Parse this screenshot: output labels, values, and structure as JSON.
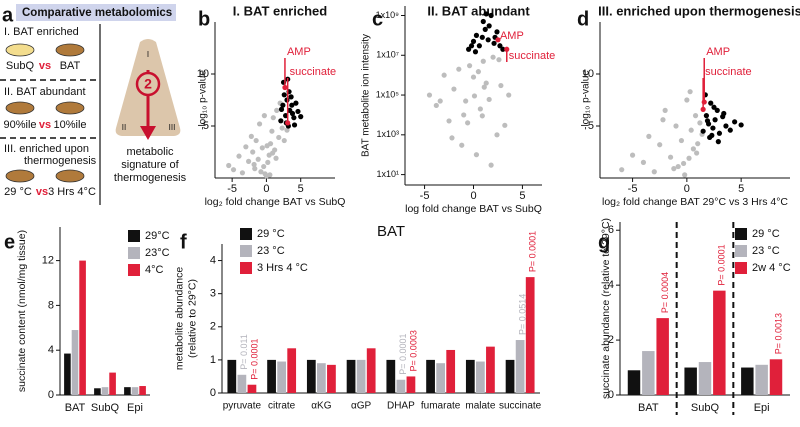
{
  "panel_a": {
    "label": "a",
    "title": "Comparative metabolomics",
    "rows": [
      {
        "heading": [
          "I. BAT enriched"
        ],
        "left": "SubQ",
        "vs": "vs",
        "right": "BAT"
      },
      {
        "heading": [
          "II. BAT abundant"
        ],
        "left": "90%ile",
        "vs": "vs",
        "right": "10%ile"
      },
      {
        "heading": [
          "III. enriched upon",
          "thermogenesis"
        ],
        "left": "29 °C",
        "vs": "vs",
        "right": "3 Hrs 4°C"
      }
    ],
    "diagram": {
      "step": "2",
      "corner_labels": [
        "I",
        "II",
        "III"
      ],
      "caption": [
        "metabolic",
        "signature of",
        "thermogenesis"
      ]
    }
  },
  "chart_data": [
    {
      "type": "scatter",
      "panel_label": "b",
      "title": "I. BAT enriched",
      "xlabel": "log₂ fold change  BAT vs SubQ",
      "ylabel": "-log₁₀ p-value",
      "xlim": [
        -7.5,
        10
      ],
      "xticks": [
        -5,
        0,
        5
      ],
      "ylim": [
        0,
        15
      ],
      "yticks": [
        5,
        10
      ],
      "series": [
        {
          "color": "#bdbdbd",
          "x": [
            -5.5,
            -4.8,
            -4,
            -3.5,
            -3,
            -2.6,
            -2.2,
            -2,
            -1.7,
            -1.5,
            -1.2,
            -1,
            -0.8,
            -0.6,
            -0.4,
            -0.2,
            0,
            0.2,
            0.4,
            0.6,
            0.8,
            1,
            1.2,
            1.5,
            1.8,
            2,
            2.3,
            0.5,
            -0.3,
            1.4,
            0.9,
            -1.8,
            2.6,
            3,
            0.1
          ],
          "values": [
            1.2,
            0.8,
            2.1,
            0.5,
            3,
            1.6,
            4,
            2.5,
            0.9,
            3.6,
            1.8,
            5.2,
            0.6,
            2.9,
            1.1,
            0.4,
            0.2,
            1.5,
            2.2,
            3.3,
            4.5,
            5.8,
            2.7,
            6.5,
            3.9,
            7.2,
            4.8,
            0.3,
            6,
            1.9,
            2.4,
            1.3,
            3.6,
            4.6,
            3.1
          ]
        },
        {
          "color": "#000000",
          "x": [
            2.1,
            2.4,
            2.6,
            2.8,
            3,
            3.2,
            3.4,
            3.6,
            3.8,
            4,
            4.3,
            4.6,
            5,
            2.5,
            2.9,
            3.3,
            3.7,
            2.2,
            3.1,
            4.1
          ],
          "values": [
            5.5,
            7,
            8,
            6,
            7.5,
            5,
            6.5,
            7.8,
            6.2,
            5.8,
            7.2,
            6.4,
            5.9,
            9.2,
            5.3,
            8.3,
            7,
            6.6,
            9.5,
            5.1
          ]
        },
        {
          "color": "#e0203a",
          "x": [
            2.7,
            3.1
          ],
          "values": [
            8.7,
            5.3
          ],
          "point_labels": [
            "AMP",
            "succinate"
          ]
        }
      ]
    },
    {
      "type": "scatter",
      "panel_label": "c",
      "title": "II. BAT abundant",
      "xlabel": "log fold change BAT vs SubQ",
      "ylabel": "BAT metabolite ion intensity",
      "log_y": true,
      "xlim": [
        -7,
        7
      ],
      "xticks": [
        -5,
        0,
        5
      ],
      "ylim": [
        3,
        3000000000
      ],
      "yticks": [
        {
          "value": 10,
          "label": "1x10¹"
        },
        {
          "value": 1000,
          "label": "1x10³"
        },
        {
          "value": 100000,
          "label": "1x10⁵"
        },
        {
          "value": 10000000,
          "label": "1x10⁷"
        },
        {
          "value": 1000000000,
          "label": "1x10⁹"
        }
      ],
      "series": [
        {
          "color": "#bdbdbd",
          "x": [
            -4.5,
            -3.8,
            -3,
            -2.5,
            -2,
            -1.5,
            -1.2,
            -0.8,
            -0.4,
            0,
            0.3,
            0.7,
            1,
            1.3,
            1.6,
            2,
            2.4,
            2.8,
            3.2,
            -1,
            0.5,
            1.8,
            -2.2,
            2.6,
            0.1,
            -0.6,
            1.1,
            3.6,
            -3.4,
            0.9
          ],
          "values": [
            100000,
            30000,
            1000000,
            5000,
            200000,
            2000000,
            300,
            50000,
            3000000,
            800000,
            100,
            20000,
            5000000,
            400000,
            60000,
            8000000,
            1000,
            300000,
            3000,
            10000,
            1500000,
            30,
            700,
            6000000,
            90000,
            4000,
            250000,
            100000,
            50000,
            9000
          ]
        },
        {
          "color": "#000000",
          "x": [
            -0.5,
            0,
            0.3,
            0.6,
            0.9,
            1.2,
            1.5,
            1.8,
            2.1,
            2.4,
            2.7,
            3,
            1,
            1.6,
            0.2,
            2.2,
            -0.2,
            1.3
          ],
          "values": [
            20000000,
            50000000,
            100000000,
            30000000,
            80000000,
            200000000,
            60000000,
            1000000000,
            40000000,
            150000000,
            30000000,
            20000000,
            500000000,
            300000000,
            15000000,
            80000000,
            30000000,
            1200000000
          ]
        },
        {
          "color": "#e0203a",
          "x": [
            2.5,
            3.4
          ],
          "values": [
            60000000,
            20000000
          ],
          "point_labels": [
            "AMP",
            "succinate"
          ]
        }
      ]
    },
    {
      "type": "scatter",
      "panel_label": "d",
      "title": "III. enriched upon thermogenesis",
      "xlabel": "log₂ fold change  BAT 29°C vs 3 Hrs 4°C",
      "ylabel": "-log₁₀ p-value",
      "xlim": [
        -8,
        9.5
      ],
      "xticks": [
        -5,
        0,
        5
      ],
      "ylim": [
        0,
        15
      ],
      "yticks": [
        5,
        10
      ],
      "series": [
        {
          "color": "#bdbdbd",
          "x": [
            -6,
            -5,
            -4,
            -3.5,
            -3,
            -2.5,
            -2,
            -1.5,
            -1,
            -0.8,
            -0.5,
            -0.2,
            0,
            0.2,
            0.4,
            0.6,
            0.8,
            1,
            1.2,
            -1.2,
            0.3,
            -0.3,
            0.9,
            1.4,
            -2.2
          ],
          "values": [
            0.8,
            2.2,
            1.5,
            4,
            0.6,
            3.2,
            6.5,
            2,
            5,
            1.1,
            3.6,
            0.3,
            7.5,
            1.9,
            4.6,
            2.8,
            6,
            3.3,
            5.3,
            0.9,
            8.3,
            1.4,
            2.4,
            4.2,
            5.6
          ]
        },
        {
          "color": "#000000",
          "x": [
            1.5,
            1.8,
            2,
            2.2,
            2.4,
            2.6,
            2.8,
            3,
            3.3,
            3.6,
            4,
            4.4,
            5,
            1.7,
            2.1,
            2.5,
            2.9,
            3.4,
            1.9,
            2.3
          ],
          "values": [
            4.5,
            6,
            5.2,
            7.2,
            4.8,
            5.6,
            6.5,
            4.3,
            5.9,
            5,
            4.6,
            5.4,
            5.1,
            8,
            3.9,
            6.8,
            3.5,
            6.2,
            5.5,
            4.1
          ]
        },
        {
          "color": "#e0203a",
          "x": [
            1.6,
            1.5
          ],
          "values": [
            7.3,
            6.6
          ],
          "point_labels": [
            "AMP",
            "succinate"
          ]
        }
      ]
    },
    {
      "type": "bar",
      "panel_label": "e",
      "ylabel": [
        "succinate content (nmol/mg tissue)"
      ],
      "categories": [
        "BAT",
        "SubQ",
        "Epi"
      ],
      "ylim": [
        0,
        15
      ],
      "yticks": [
        0,
        4,
        8,
        12
      ],
      "series": [
        {
          "name": "29°C",
          "color": "#111111",
          "values": [
            3.7,
            0.6,
            0.7
          ]
        },
        {
          "name": "23°C",
          "color": "#b4b4bc",
          "values": [
            5.8,
            0.7,
            0.7
          ]
        },
        {
          "name": "4°C",
          "color": "#e0203a",
          "values": [
            12,
            2,
            0.8
          ]
        }
      ]
    },
    {
      "type": "bar",
      "panel_label": "f",
      "title": "BAT",
      "ylabel": [
        "metabolite abundance",
        "(relative to 29°C)"
      ],
      "categories": [
        "pyruvate",
        "citrate",
        "αKG",
        "αGP",
        "DHAP",
        "fumarate",
        "malate",
        "succinate"
      ],
      "ylim": [
        0,
        4.5
      ],
      "yticks": [
        0,
        1,
        2,
        3,
        4
      ],
      "series": [
        {
          "name": "29 °C",
          "color": "#111111",
          "values": [
            1,
            1,
            1,
            1,
            1,
            1,
            1,
            1
          ]
        },
        {
          "name": "23 °C",
          "color": "#b4b4bc",
          "values": [
            0.55,
            0.95,
            0.9,
            1,
            0.4,
            0.9,
            0.95,
            1.6
          ],
          "p_labels": [
            "P= 0.011",
            null,
            null,
            null,
            "P= 0.0001",
            null,
            null,
            "P= 0.0514"
          ]
        },
        {
          "name": "3 Hrs 4 °C",
          "color": "#e0203a",
          "values": [
            0.25,
            1.35,
            0.85,
            1.35,
            0.5,
            1.3,
            1.4,
            3.5
          ],
          "p_labels": [
            "P= 0.0001",
            null,
            null,
            null,
            "P= 0.0003",
            null,
            null,
            "P= 0.0001"
          ]
        }
      ]
    },
    {
      "type": "bar",
      "panel_label": "g",
      "ylabel": [
        "succinate abundance (relative to 29°C)"
      ],
      "categories": [
        "BAT",
        "SubQ",
        "Epi"
      ],
      "ylim": [
        0,
        6.3
      ],
      "yticks": [
        0,
        2,
        4,
        6
      ],
      "group_separators": true,
      "series": [
        {
          "name": "29 °C",
          "color": "#111111",
          "values": [
            0.9,
            1,
            1
          ]
        },
        {
          "name": "23 °C",
          "color": "#b4b4bc",
          "values": [
            1.6,
            1.2,
            1.1
          ]
        },
        {
          "name": "2w 4 °C",
          "color": "#e0203a",
          "values": [
            2.8,
            3.8,
            1.3
          ],
          "p_labels": [
            "P= 0.0004",
            "P= 0.0001",
            "P= 0.0013"
          ]
        }
      ]
    }
  ]
}
